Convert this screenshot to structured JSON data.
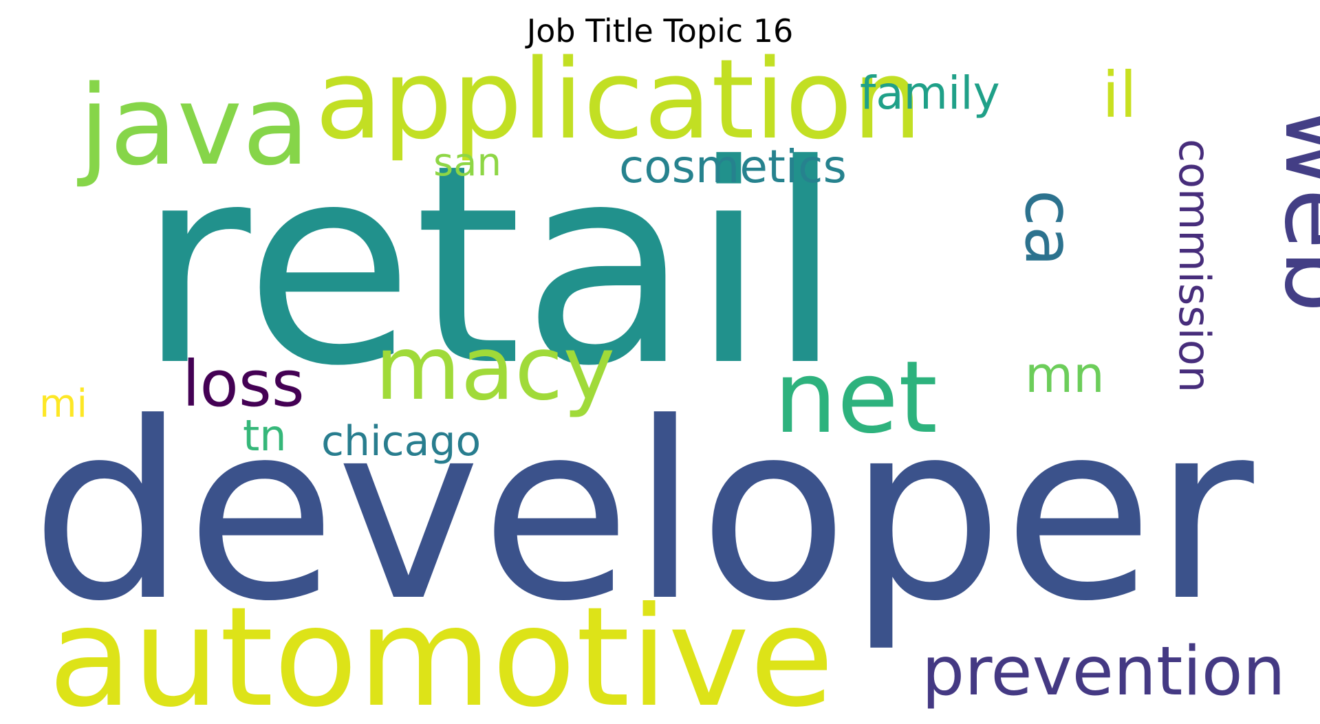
{
  "title": "Job Title Topic 16",
  "words": [
    {
      "text": "developer",
      "color": "#3b528b"
    },
    {
      "text": "retail",
      "color": "#21918c"
    },
    {
      "text": "automotive",
      "color": "#dde318"
    },
    {
      "text": "application",
      "color": "#c2df23"
    },
    {
      "text": "java",
      "color": "#86d549"
    },
    {
      "text": "web",
      "color": "#433e85"
    },
    {
      "text": "net",
      "color": "#2db27d"
    },
    {
      "text": "macy",
      "color": "#a0da39"
    },
    {
      "text": "prevention",
      "color": "#443983"
    },
    {
      "text": "commission",
      "color": "#472d7b"
    },
    {
      "text": "ca",
      "color": "#2c728e"
    },
    {
      "text": "loss",
      "color": "#440154"
    },
    {
      "text": "cosmetics",
      "color": "#26828e"
    },
    {
      "text": "family",
      "color": "#1fa088"
    },
    {
      "text": "il",
      "color": "#c8e020"
    },
    {
      "text": "mn",
      "color": "#6ccd5a"
    },
    {
      "text": "chicago",
      "color": "#287d8e"
    },
    {
      "text": "san",
      "color": "#8ed645"
    },
    {
      "text": "tn",
      "color": "#35b779"
    },
    {
      "text": "mi",
      "color": "#fde725"
    }
  ]
}
